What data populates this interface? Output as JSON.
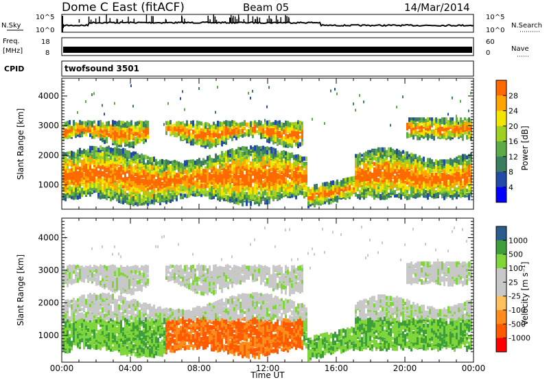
{
  "header": {
    "station": "Dome C East (fitACF)",
    "beam": "Beam 05",
    "date": "14/Mar/2014"
  },
  "strips": {
    "nsky_label": "N.Sky",
    "nsearch_label": "N.Search",
    "noise_ticks": [
      "10^5",
      "10^0"
    ],
    "freq_label": "Freq.",
    "freq_unit": "[MHz]",
    "freq_ticks": [
      "18",
      "8"
    ],
    "nave_label": "Nave",
    "nave_ticks": [
      "60",
      "0"
    ],
    "cpid_label": "CPID",
    "cpid_value": "twofsound 3501"
  },
  "colors": {
    "power_scale": [
      "#0000ff",
      "#234aa6",
      "#3b7d5f",
      "#5cab46",
      "#9fd122",
      "#f2e600",
      "#ffa500",
      "#ff6a00",
      "#ff2a00",
      "#e60000"
    ],
    "velocity_scale": [
      "#ff0000",
      "#ff5a00",
      "#ff8c1a",
      "#ffc060",
      "#c8c8c8",
      "#c8c8c8",
      "#7fd63a",
      "#3e9e3a",
      "#2a5c8c",
      "#1c3c96"
    ]
  },
  "chart_data": [
    {
      "type": "heatmap",
      "panel": "power",
      "ylabel": "Slant Range [km]",
      "xlabel": "Time UT",
      "x_ticks": [
        "00:00",
        "04:00",
        "08:00",
        "12:00",
        "16:00",
        "20:00",
        "00:00"
      ],
      "y_ticks": [
        1000,
        2000,
        3000,
        4000
      ],
      "ylim": [
        180,
        4600
      ],
      "xlim_hours": [
        0,
        24
      ],
      "colorbar": {
        "label": "Power [dB]",
        "ticks": [
          4,
          8,
          12,
          16,
          20,
          24,
          28
        ]
      }
    },
    {
      "type": "heatmap",
      "panel": "velocity",
      "ylabel": "Slant Range [km]",
      "xlabel": "Time UT",
      "x_ticks": [
        "00:00",
        "04:00",
        "08:00",
        "12:00",
        "16:00",
        "20:00",
        "00:00"
      ],
      "y_ticks": [
        1000,
        2000,
        3000,
        4000
      ],
      "ylim": [
        180,
        4600
      ],
      "xlim_hours": [
        0,
        24
      ],
      "colorbar": {
        "label": "Velocity [m s⁻¹]",
        "ticks": [
          1000,
          500,
          100,
          25,
          -25,
          -100,
          -500,
          -1000
        ]
      }
    }
  ]
}
